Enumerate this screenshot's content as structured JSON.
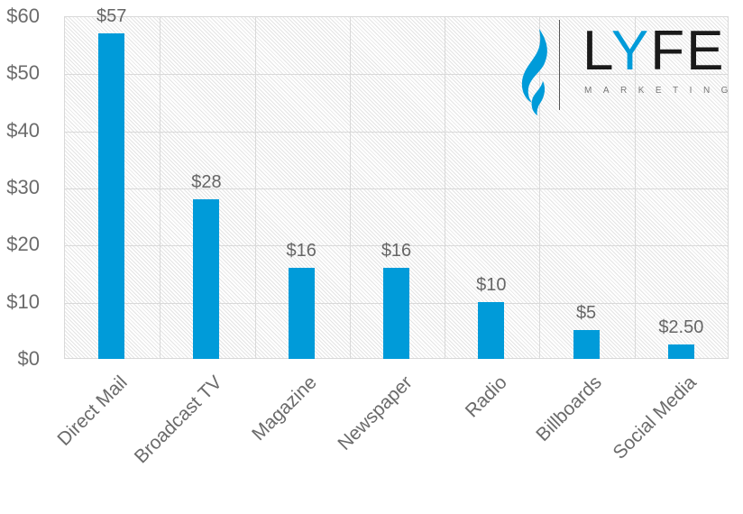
{
  "chart_data": {
    "type": "bar",
    "title": "",
    "xlabel": "",
    "ylabel": "",
    "categories": [
      "Direct Mail",
      "Broadcast TV",
      "Magazine",
      "Newspaper",
      "Radio",
      "Billboards",
      "Social Media"
    ],
    "values": [
      57,
      28,
      16,
      16,
      10,
      5,
      2.5
    ],
    "data_labels": [
      "$57",
      "$28",
      "$16",
      "$16",
      "$10",
      "$5",
      "$2.50"
    ],
    "ylim": [
      0,
      60
    ],
    "yticks": [
      0,
      10,
      20,
      30,
      40,
      50,
      60
    ],
    "ytick_labels": [
      "$0",
      "$10",
      "$20",
      "$30",
      "$40",
      "$50",
      "$60"
    ],
    "grid": true,
    "legend": null,
    "bar_color": "#009bd9"
  },
  "logo": {
    "letters_l": "L",
    "letters_y": "Y",
    "letters_fe": "FE",
    "subtitle": "MARKETING",
    "accent_color": "#009bd9",
    "icon": "flame-icon"
  }
}
